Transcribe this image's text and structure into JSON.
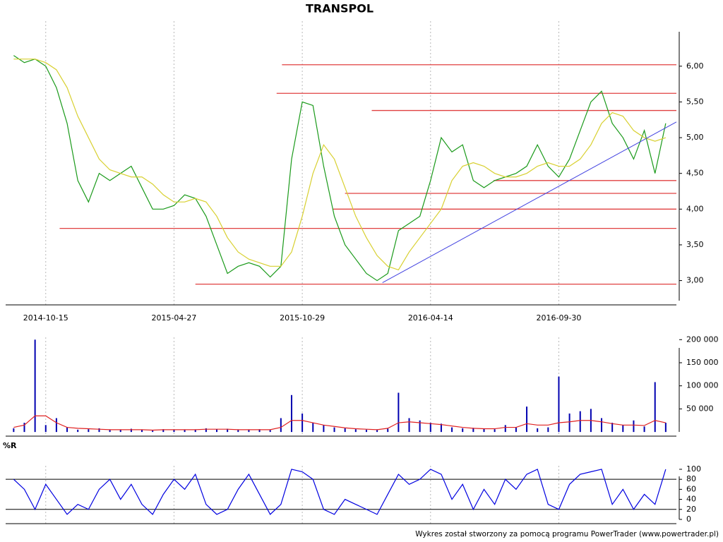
{
  "chart_data": [
    {
      "type": "line",
      "title": "TRANSPOL",
      "categories": [
        null,
        null,
        null,
        "2014-10-15",
        null,
        null,
        null,
        null,
        null,
        null,
        null,
        null,
        null,
        null,
        null,
        "2015-04-27",
        null,
        null,
        null,
        null,
        null,
        null,
        null,
        null,
        null,
        null,
        null,
        "2015-10-29",
        null,
        null,
        null,
        null,
        null,
        null,
        null,
        null,
        null,
        null,
        null,
        "2016-04-14",
        null,
        null,
        null,
        null,
        null,
        null,
        null,
        null,
        null,
        null,
        null,
        "2016-09-30",
        null,
        null,
        null,
        null,
        null,
        null,
        null,
        null,
        null,
        null
      ],
      "series": [
        {
          "color": "#1a9a1a",
          "values": [
            6.15,
            6.05,
            6.1,
            6.0,
            5.7,
            5.2,
            4.4,
            4.1,
            4.5,
            4.4,
            4.5,
            4.6,
            4.3,
            4.0,
            4.0,
            4.05,
            4.2,
            4.15,
            3.9,
            3.5,
            3.1,
            3.2,
            3.25,
            3.2,
            3.05,
            3.2,
            4.7,
            5.5,
            5.45,
            4.6,
            3.9,
            3.5,
            3.3,
            3.1,
            3.0,
            3.1,
            3.7,
            3.8,
            3.9,
            4.4,
            5.0,
            4.8,
            4.9,
            4.4,
            4.3,
            4.4,
            4.45,
            4.5,
            4.6,
            4.9,
            4.6,
            4.45,
            4.7,
            5.1,
            5.5,
            5.65,
            5.2,
            5.0,
            4.7,
            5.1,
            4.5,
            5.2
          ]
        },
        {
          "color": "#d8d030",
          "values": [
            6.1,
            6.1,
            6.1,
            6.05,
            5.95,
            5.7,
            5.3,
            5.0,
            4.7,
            4.55,
            4.5,
            4.45,
            4.45,
            4.35,
            4.2,
            4.1,
            4.1,
            4.15,
            4.1,
            3.9,
            3.6,
            3.4,
            3.3,
            3.25,
            3.2,
            3.2,
            3.4,
            3.9,
            4.5,
            4.9,
            4.7,
            4.3,
            3.9,
            3.6,
            3.35,
            3.2,
            3.15,
            3.4,
            3.6,
            3.8,
            4.0,
            4.4,
            4.6,
            4.65,
            4.6,
            4.5,
            4.45,
            4.45,
            4.5,
            4.6,
            4.65,
            4.6,
            4.6,
            4.7,
            4.9,
            5.2,
            5.35,
            5.3,
            5.1,
            5.0,
            4.95,
            5.0
          ]
        }
      ],
      "xlim": [
        -0.75,
        62
      ],
      "ylim": [
        2.66,
        6.63
      ],
      "yticks": [
        {
          "value": 3,
          "label": "3,00"
        },
        {
          "value": 3.5,
          "label": "3,50"
        },
        {
          "value": 4,
          "label": "4,00"
        },
        {
          "value": 4.5,
          "label": "4,50"
        },
        {
          "value": 5,
          "label": "5,00"
        },
        {
          "value": 5.5,
          "label": "5,50"
        },
        {
          "value": 6,
          "label": "6,00"
        }
      ],
      "level_color": "#e04040",
      "levels": [
        {
          "y": 6.02,
          "x_from": 25.1
        },
        {
          "y": 5.62,
          "x_from": 24.6
        },
        {
          "y": 5.38,
          "x_from": 33.5
        },
        {
          "y": 4.4,
          "x_from": 44.9
        },
        {
          "y": 4.22,
          "x_from": 31
        },
        {
          "y": 4.0,
          "x_from": 29.9
        },
        {
          "y": 3.73,
          "x_from": 4.3
        },
        {
          "y": 2.95,
          "x_from": 17
        }
      ],
      "trendline": {
        "color": "#4040e0",
        "x": [
          34.5,
          62
        ],
        "y": [
          2.97,
          5.22
        ]
      }
    },
    {
      "type": "bar",
      "series": [
        {
          "color": "#0000b0",
          "values": [
            8000,
            20000,
            200000,
            15000,
            30000,
            10000,
            5000,
            6000,
            8000,
            4000,
            5000,
            7000,
            4000,
            3000,
            6000,
            5000,
            4000,
            5000,
            8000,
            6000,
            7000,
            4000,
            5000,
            6000,
            4000,
            30000,
            80000,
            40000,
            20000,
            15000,
            10000,
            8000,
            6000,
            5000,
            4000,
            7000,
            85000,
            30000,
            25000,
            20000,
            18000,
            10000,
            8000,
            9000,
            7000,
            6000,
            15000,
            10000,
            55000,
            8000,
            10000,
            120000,
            40000,
            45000,
            50000,
            30000,
            20000,
            15000,
            25000,
            12000,
            108000,
            20000
          ]
        },
        {
          "color": "#e02020",
          "values": [
            10000,
            15000,
            35000,
            35000,
            20000,
            10000,
            8000,
            7000,
            6000,
            5000,
            5000,
            5000,
            5000,
            4000,
            5000,
            5000,
            5000,
            5000,
            6000,
            6000,
            6000,
            5000,
            5000,
            5000,
            5000,
            10000,
            25000,
            25000,
            20000,
            15000,
            12000,
            9000,
            7000,
            6000,
            5000,
            8000,
            20000,
            22000,
            20000,
            18000,
            16000,
            13000,
            10000,
            8000,
            7000,
            7000,
            10000,
            10000,
            18000,
            15000,
            15000,
            20000,
            22000,
            25000,
            25000,
            22000,
            18000,
            15000,
            15000,
            14000,
            25000,
            20000
          ]
        }
      ],
      "xlim": [
        -0.75,
        62
      ],
      "ylim": [
        -9000,
        205000
      ],
      "yticks": [
        {
          "value": 50000,
          "label": "50 000"
        },
        {
          "value": 100000,
          "label": "100 000"
        },
        {
          "value": 150000,
          "label": "150 000"
        },
        {
          "value": 200000,
          "label": "200 000"
        }
      ]
    },
    {
      "type": "line",
      "title": "%R",
      "series": [
        {
          "color": "#0000e0",
          "values": [
            80,
            60,
            20,
            70,
            40,
            10,
            30,
            20,
            60,
            80,
            40,
            70,
            30,
            10,
            50,
            80,
            60,
            90,
            30,
            10,
            20,
            60,
            90,
            50,
            10,
            30,
            100,
            95,
            80,
            20,
            10,
            40,
            30,
            20,
            10,
            50,
            90,
            70,
            80,
            100,
            90,
            40,
            70,
            20,
            60,
            30,
            80,
            60,
            90,
            100,
            30,
            20,
            70,
            90,
            95,
            100,
            30,
            60,
            20,
            50,
            30,
            100
          ]
        }
      ],
      "xlim": [
        -0.75,
        62
      ],
      "ylim": [
        -8.5,
        107
      ],
      "yticks": [
        0,
        20,
        40,
        60,
        80,
        100
      ],
      "guides": [
        20,
        80
      ]
    }
  ],
  "footer": "Wykres został stworzony za pomocą programu PowerTrader (www.powertrader.pl)"
}
